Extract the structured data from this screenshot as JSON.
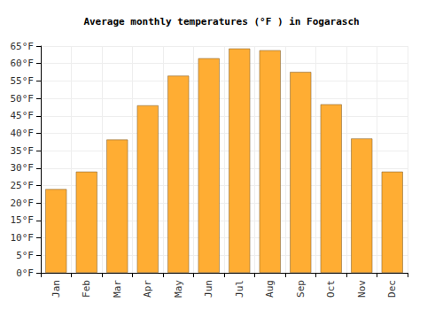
{
  "chart_data": {
    "type": "bar",
    "title": "Average monthly temperatures (°F ) in Fogarasch",
    "categories": [
      "Jan",
      "Feb",
      "Mar",
      "Apr",
      "May",
      "Jun",
      "Jul",
      "Aug",
      "Sep",
      "Oct",
      "Nov",
      "Dec"
    ],
    "values": [
      24,
      29,
      38.2,
      48,
      56.5,
      61.5,
      64.3,
      63.8,
      57.6,
      48.3,
      38.5,
      29
    ],
    "color": "#ffad33",
    "ylim": [
      0,
      65
    ],
    "yticks": [
      {
        "value": 0,
        "label": "0°F"
      },
      {
        "value": 5,
        "label": "5°F"
      },
      {
        "value": 10,
        "label": "10°F"
      },
      {
        "value": 15,
        "label": "15°F"
      },
      {
        "value": 20,
        "label": "20°F"
      },
      {
        "value": 25,
        "label": "25°F"
      },
      {
        "value": 30,
        "label": "30°F"
      },
      {
        "value": 35,
        "label": "35°F"
      },
      {
        "value": 40,
        "label": "40°F"
      },
      {
        "value": 45,
        "label": "45°F"
      },
      {
        "value": 50,
        "label": "50°F"
      },
      {
        "value": 55,
        "label": "55°F"
      },
      {
        "value": 60,
        "label": "60°F"
      },
      {
        "value": 65,
        "label": "65°F"
      }
    ],
    "grid": true
  }
}
